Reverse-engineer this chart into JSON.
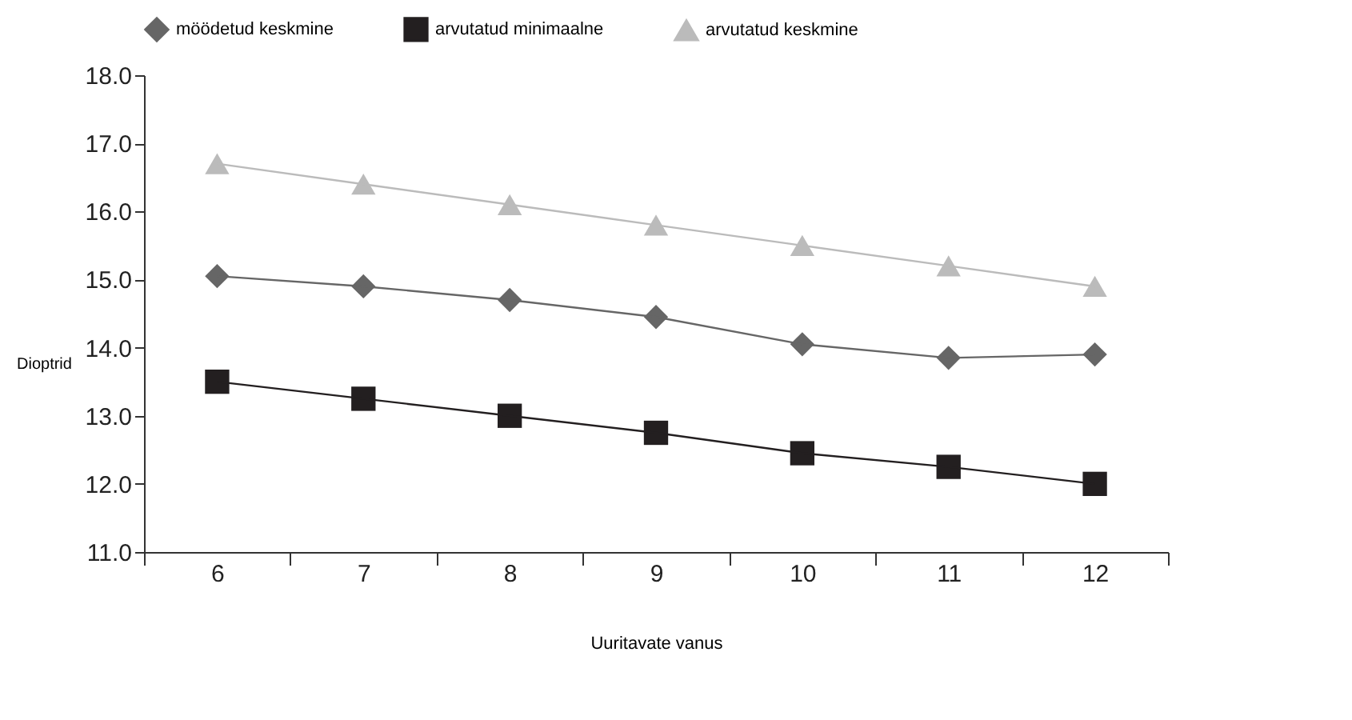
{
  "chart_data": {
    "type": "line",
    "xlabel": "Uuritavate vanus",
    "ylabel": "Dioptrid",
    "categories": [
      "6",
      "7",
      "8",
      "9",
      "10",
      "11",
      "12"
    ],
    "series": [
      {
        "name": "möödetud keskmine",
        "color": "#666666",
        "marker": "diamond",
        "values": [
          15.05,
          14.9,
          14.7,
          14.45,
          14.05,
          13.85,
          13.9
        ]
      },
      {
        "name": "arvutatud minimaalne",
        "color": "#231f20",
        "marker": "square",
        "values": [
          13.5,
          13.25,
          13.0,
          12.75,
          12.45,
          12.25,
          12.0
        ]
      },
      {
        "name": "arvutatud keskmine",
        "color": "#bbbbbb",
        "marker": "triangle",
        "values": [
          16.7,
          16.4,
          16.1,
          15.8,
          15.5,
          15.2,
          14.9
        ]
      }
    ],
    "ylim": [
      11.0,
      18.0
    ],
    "yticks": [
      {
        "value": 11,
        "label": "11.0"
      },
      {
        "value": 12,
        "label": "12.0"
      },
      {
        "value": 13,
        "label": "13.0"
      },
      {
        "value": 14,
        "label": "14.0"
      },
      {
        "value": 15,
        "label": "15.0"
      },
      {
        "value": 16,
        "label": "16.0"
      },
      {
        "value": 17,
        "label": "17.0"
      },
      {
        "value": 18,
        "label": "18.0"
      }
    ],
    "grid": false,
    "legend": "top",
    "line_style": "solid"
  }
}
